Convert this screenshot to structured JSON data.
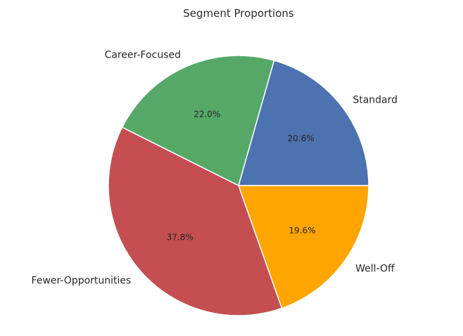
{
  "chart_data": {
    "type": "pie",
    "title": "Segment Proportions",
    "slices": [
      {
        "label": "Standard",
        "value": 20.6,
        "pct_label": "20.6%",
        "color": "#4c72b0"
      },
      {
        "label": "Career-Focused",
        "value": 22.0,
        "pct_label": "22.0%",
        "color": "#55a868"
      },
      {
        "label": "Fewer-Opportunities",
        "value": 37.8,
        "pct_label": "37.8%",
        "color": "#c44e52"
      },
      {
        "label": "Well-Off",
        "value": 19.6,
        "pct_label": "19.6%",
        "color": "#ffa500"
      }
    ],
    "start_angle_deg": 0,
    "direction": "counterclockwise"
  }
}
